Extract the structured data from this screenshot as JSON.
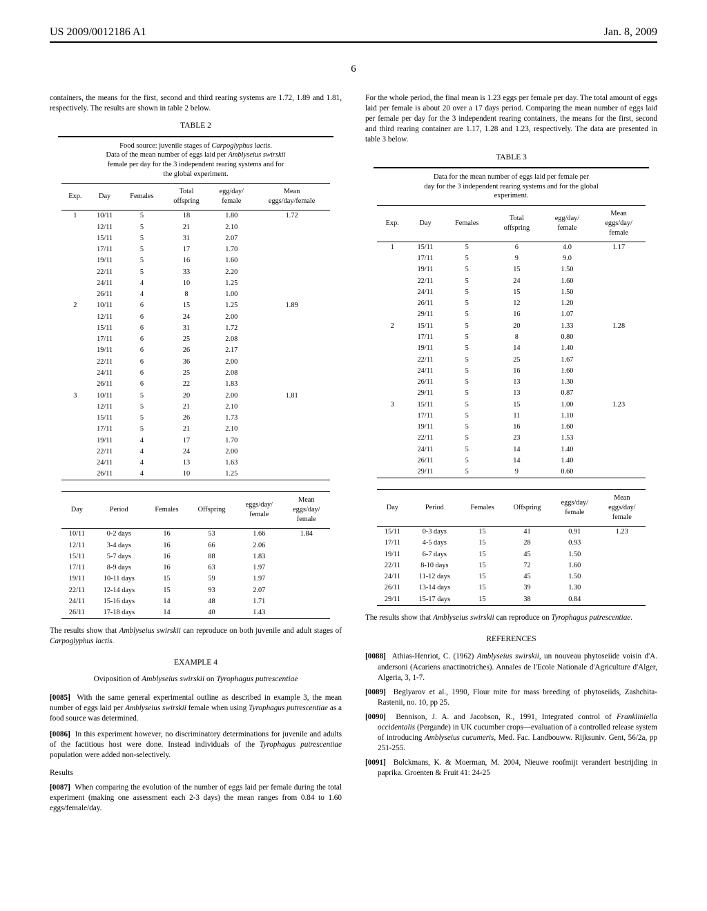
{
  "header": {
    "left": "US 2009/0012186 A1",
    "right": "Jan. 8, 2009"
  },
  "page_number": "6",
  "col_left": {
    "intro": "containers, the means for the first, second and third rearing systems are 1.72, 1.89 and 1.81, respectively. The results are shown in table 2 below.",
    "table2": {
      "label": "TABLE 2",
      "caption_lines": [
        "Food source: juvenile stages of Carpoglyphus lactis.",
        "Data of the mean number of eggs laid per Amblyseius swirskii",
        "female per day for the 3 independent rearing systems and for",
        "the global experiment."
      ],
      "headers_top": [
        "Exp.",
        "Day",
        "Females",
        "Total offspring",
        "egg/day/ female",
        "Mean eggs/day/female"
      ],
      "groups": [
        {
          "exp": "1",
          "mean": "1.72",
          "rows": [
            [
              "10/11",
              "5",
              "18",
              "1.80"
            ],
            [
              "12/11",
              "5",
              "21",
              "2.10"
            ],
            [
              "15/11",
              "5",
              "31",
              "2.07"
            ],
            [
              "17/11",
              "5",
              "17",
              "1.70"
            ],
            [
              "19/11",
              "5",
              "16",
              "1.60"
            ],
            [
              "22/11",
              "5",
              "33",
              "2.20"
            ],
            [
              "24/11",
              "4",
              "10",
              "1.25"
            ],
            [
              "26/11",
              "4",
              "8",
              "1.00"
            ]
          ]
        },
        {
          "exp": "2",
          "mean": "1.89",
          "rows": [
            [
              "10/11",
              "6",
              "15",
              "1.25"
            ],
            [
              "12/11",
              "6",
              "24",
              "2.00"
            ],
            [
              "15/11",
              "6",
              "31",
              "1.72"
            ],
            [
              "17/11",
              "6",
              "25",
              "2.08"
            ],
            [
              "19/11",
              "6",
              "26",
              "2.17"
            ],
            [
              "22/11",
              "6",
              "36",
              "2.00"
            ],
            [
              "24/11",
              "6",
              "25",
              "2.08"
            ],
            [
              "26/11",
              "6",
              "22",
              "1.83"
            ]
          ]
        },
        {
          "exp": "3",
          "mean": "1.81",
          "rows": [
            [
              "10/11",
              "5",
              "20",
              "2.00"
            ],
            [
              "12/11",
              "5",
              "21",
              "2.10"
            ],
            [
              "15/11",
              "5",
              "26",
              "1.73"
            ],
            [
              "17/11",
              "5",
              "21",
              "2.10"
            ],
            [
              "19/11",
              "4",
              "17",
              "1.70"
            ],
            [
              "22/11",
              "4",
              "24",
              "2.00"
            ],
            [
              "24/11",
              "4",
              "13",
              "1.63"
            ],
            [
              "26/11",
              "4",
              "10",
              "1.25"
            ]
          ]
        }
      ],
      "headers_bot": [
        "Day",
        "Period",
        "Females",
        "Offspring",
        "eggs/day/ female",
        "Mean eggs/day/ female"
      ],
      "summary": {
        "mean": "1.84",
        "rows": [
          [
            "10/11",
            "0-2 days",
            "16",
            "53",
            "1.66"
          ],
          [
            "12/11",
            "3-4 days",
            "16",
            "66",
            "2.06"
          ],
          [
            "15/11",
            "5-7 days",
            "16",
            "88",
            "1.83"
          ],
          [
            "17/11",
            "8-9 days",
            "16",
            "63",
            "1.97"
          ],
          [
            "19/11",
            "10-11 days",
            "15",
            "59",
            "1.97"
          ],
          [
            "22/11",
            "12-14 days",
            "15",
            "93",
            "2.07"
          ],
          [
            "24/11",
            "15-16 days",
            "14",
            "48",
            "1.71"
          ],
          [
            "26/11",
            "17-18 days",
            "14",
            "40",
            "1.43"
          ]
        ]
      }
    },
    "after_t2": "The results show that Amblyseius swirskii can reproduce on both juvenile and adult stages of Carpoglyphus lactis.",
    "ex4_hd": "EXAMPLE 4",
    "ex4_sub": "Oviposition of Amblyseius swirskii on Tyrophagus putrescentiae",
    "p0085_n": "[0085]",
    "p0085": "With the same general experimental outline as described in example 3, the mean number of eggs laid per Amblyseius swirskii female when using Tyrophagus putrescentiae as a food source was determined.",
    "p0086_n": "[0086]",
    "p0086": "In this experiment however, no discriminatory determinations for juvenile and adults of the factitious host were done. Instead individuals of the Tyrophagus putrescentiae population were added non-selectively.",
    "results_hd": "Results",
    "p0087_n": "[0087]",
    "p0087": "When comparing the evolution of the number of eggs laid per female during the total experiment (making one assessment each 2-3 days) the mean ranges from 0.84 to 1.60 eggs/female/day."
  },
  "col_right": {
    "intro": "For the whole period, the final mean is 1.23 eggs per female per day. The total amount of eggs laid per female is about 20 over a 17 days period. Comparing the mean number of eggs laid per female per day for the 3 independent rearing containers, the means for the first, second and third rearing container are 1.17, 1.28 and 1.23, respectively. The data are presented in table 3 below.",
    "table3": {
      "label": "TABLE 3",
      "caption_lines": [
        "Data for the mean number of eggs laid per female per",
        "day for the 3 independent rearing systems and for the global",
        "experiment."
      ],
      "headers_top": [
        "Exp.",
        "Day",
        "Females",
        "Total offspring",
        "egg/day/ female",
        "Mean eggs/day/ female"
      ],
      "groups": [
        {
          "exp": "1",
          "mean": "1.17",
          "rows": [
            [
              "15/11",
              "5",
              "6",
              "4.0"
            ],
            [
              "17/11",
              "5",
              "9",
              "9.0"
            ],
            [
              "19/11",
              "5",
              "15",
              "1.50"
            ],
            [
              "22/11",
              "5",
              "24",
              "1.60"
            ],
            [
              "24/11",
              "5",
              "15",
              "1.50"
            ],
            [
              "26/11",
              "5",
              "12",
              "1.20"
            ],
            [
              "29/11",
              "5",
              "16",
              "1.07"
            ]
          ]
        },
        {
          "exp": "2",
          "mean": "1.28",
          "rows": [
            [
              "15/11",
              "5",
              "20",
              "1.33"
            ],
            [
              "17/11",
              "5",
              "8",
              "0.80"
            ],
            [
              "19/11",
              "5",
              "14",
              "1.40"
            ],
            [
              "22/11",
              "5",
              "25",
              "1.67"
            ],
            [
              "24/11",
              "5",
              "16",
              "1.60"
            ],
            [
              "26/11",
              "5",
              "13",
              "1.30"
            ],
            [
              "29/11",
              "5",
              "13",
              "0.87"
            ]
          ]
        },
        {
          "exp": "3",
          "mean": "1.23",
          "rows": [
            [
              "15/11",
              "5",
              "15",
              "1.00"
            ],
            [
              "17/11",
              "5",
              "11",
              "1.10"
            ],
            [
              "19/11",
              "5",
              "16",
              "1.60"
            ],
            [
              "22/11",
              "5",
              "23",
              "1.53"
            ],
            [
              "24/11",
              "5",
              "14",
              "1.40"
            ],
            [
              "26/11",
              "5",
              "14",
              "1.40"
            ],
            [
              "29/11",
              "5",
              "9",
              "0.60"
            ]
          ]
        }
      ],
      "headers_bot": [
        "Day",
        "Period",
        "Females",
        "Offspring",
        "eggs/day/ female",
        "Mean eggs/day/ female"
      ],
      "summary": {
        "mean": "1.23",
        "rows": [
          [
            "15/11",
            "0-3 days",
            "15",
            "41",
            "0.91"
          ],
          [
            "17/11",
            "4-5 days",
            "15",
            "28",
            "0.93"
          ],
          [
            "19/11",
            "6-7 days",
            "15",
            "45",
            "1.50"
          ],
          [
            "22/11",
            "8-10 days",
            "15",
            "72",
            "1.60"
          ],
          [
            "24/11",
            "11-12 days",
            "15",
            "45",
            "1.50"
          ],
          [
            "26/11",
            "13-14 days",
            "15",
            "39",
            "1.30"
          ],
          [
            "29/11",
            "15-17 days",
            "15",
            "38",
            "0.84"
          ]
        ]
      }
    },
    "after_t3": "The results show that Amblyseius swirskii can reproduce on Tyrophagus putrescentiae.",
    "ref_hd": "REFERENCES",
    "refs": [
      {
        "n": "[0088]",
        "t": "Athias-Henriot, C. (1962) Amblyseius swirskii, un nouveau phytoseiide voisin d'A. andersoni (Acariens anactinotriches). Annales de l'Ecole Nationale d'Agriculture d'Alger, Algeria, 3, 1-7."
      },
      {
        "n": "[0089]",
        "t": "Beglyarov et al., 1990, Flour mite for mass breeding of phytoseiids, Zashchita-Rastenii, no. 10, pp 25."
      },
      {
        "n": "[0090]",
        "t": "Bennison, J. A. and Jacobson, R., 1991, Integrated control of Frankliniella occidentalis (Pergande) in UK cucumber crops—evaluation of a controlled release system of introducing Amblyseius cucumeris, Med. Fac. Landbouww. Rijksuniv. Gent, 56/2a, pp 251-255."
      },
      {
        "n": "[0091]",
        "t": "Bolckmans, K. & Moerman, M. 2004, Nieuwe roofmijt verandert bestrijding in paprika. Groenten & Fruit 41: 24-25"
      }
    ]
  }
}
